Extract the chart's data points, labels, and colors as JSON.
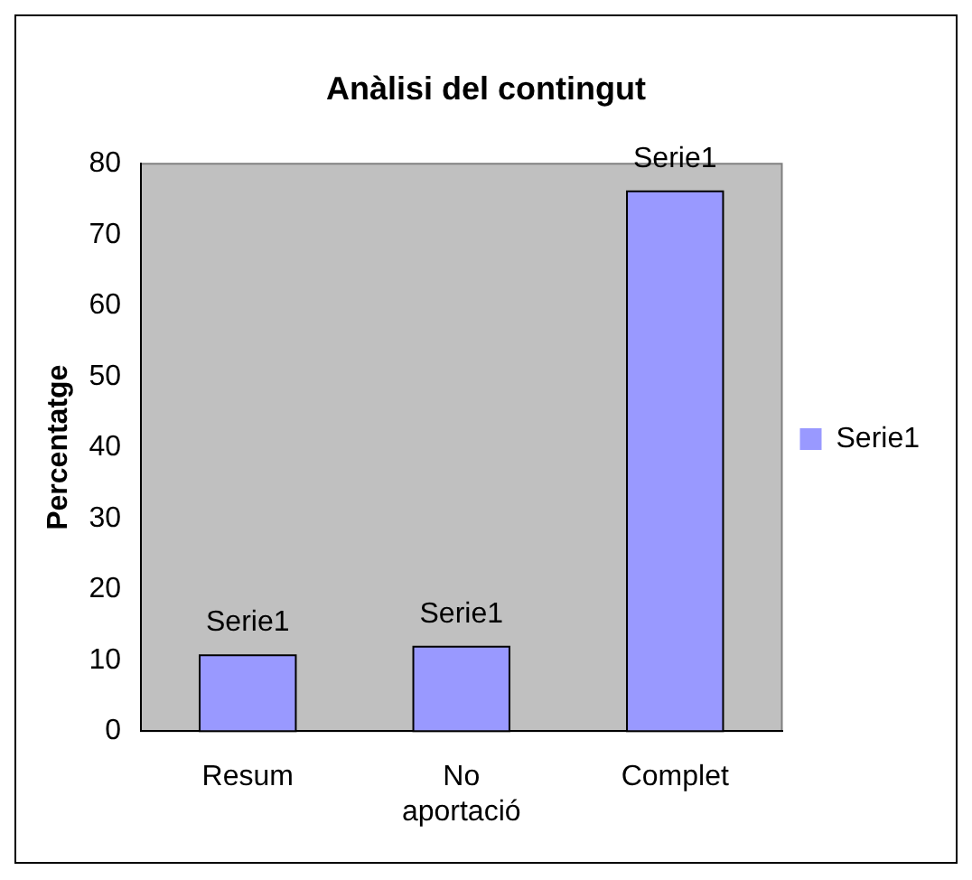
{
  "chart_data": {
    "type": "bar",
    "title": "Anàlisi del contingut",
    "ylabel": "Percentatge",
    "categories": [
      "Resum",
      "No aportació",
      "Complet"
    ],
    "series": [
      {
        "name": "Serie1",
        "color": "#9999ff",
        "values": [
          10.7,
          11.9,
          76.1
        ]
      }
    ],
    "annotations": [
      {
        "text": "Serie1",
        "x": "Resum",
        "y": 10.7
      },
      {
        "text": "Serie1",
        "x": "No aportació",
        "y": 11.9
      },
      {
        "text": "Serie1",
        "x": "Complet",
        "y": 76.1
      }
    ],
    "ylim": [
      0,
      80
    ],
    "yticks": [
      0,
      10,
      20,
      30,
      40,
      50,
      60,
      70,
      80
    ],
    "grid": false,
    "legend": "right"
  }
}
